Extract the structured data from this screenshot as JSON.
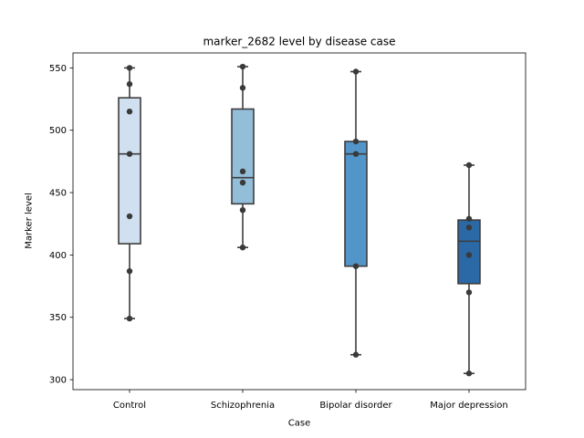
{
  "chart_data": {
    "type": "box",
    "title": "marker_2682 level by disease case",
    "xlabel": "Case",
    "ylabel": "Marker level",
    "ylim": [
      292,
      562
    ],
    "yticks": [
      300,
      350,
      400,
      450,
      500,
      550
    ],
    "categories": [
      "Control",
      "Schizophrenia",
      "Bipolar disorder",
      "Major depression"
    ],
    "colors": [
      "#d0e0f0",
      "#93bed9",
      "#5296c9",
      "#2a68a6"
    ],
    "grid": false,
    "boxes": [
      {
        "category": "Control",
        "whisker_low": 349,
        "q1": 409,
        "median": 481,
        "q3": 526,
        "whisker_high": 550,
        "points": [
          550,
          537,
          515,
          481,
          431,
          387,
          349
        ]
      },
      {
        "category": "Schizophrenia",
        "whisker_low": 406,
        "q1": 441,
        "median": 462,
        "q3": 517,
        "whisker_high": 551,
        "points": [
          551,
          534,
          467,
          458,
          436,
          406
        ]
      },
      {
        "category": "Bipolar disorder",
        "whisker_low": 320,
        "q1": 391,
        "median": 481,
        "q3": 491,
        "whisker_high": 547,
        "points": [
          547,
          491,
          481,
          391,
          320
        ]
      },
      {
        "category": "Major depression",
        "whisker_low": 305,
        "q1": 377,
        "median": 411,
        "q3": 428,
        "whisker_high": 472,
        "points": [
          472,
          429,
          422,
          400,
          370,
          305
        ]
      }
    ]
  }
}
